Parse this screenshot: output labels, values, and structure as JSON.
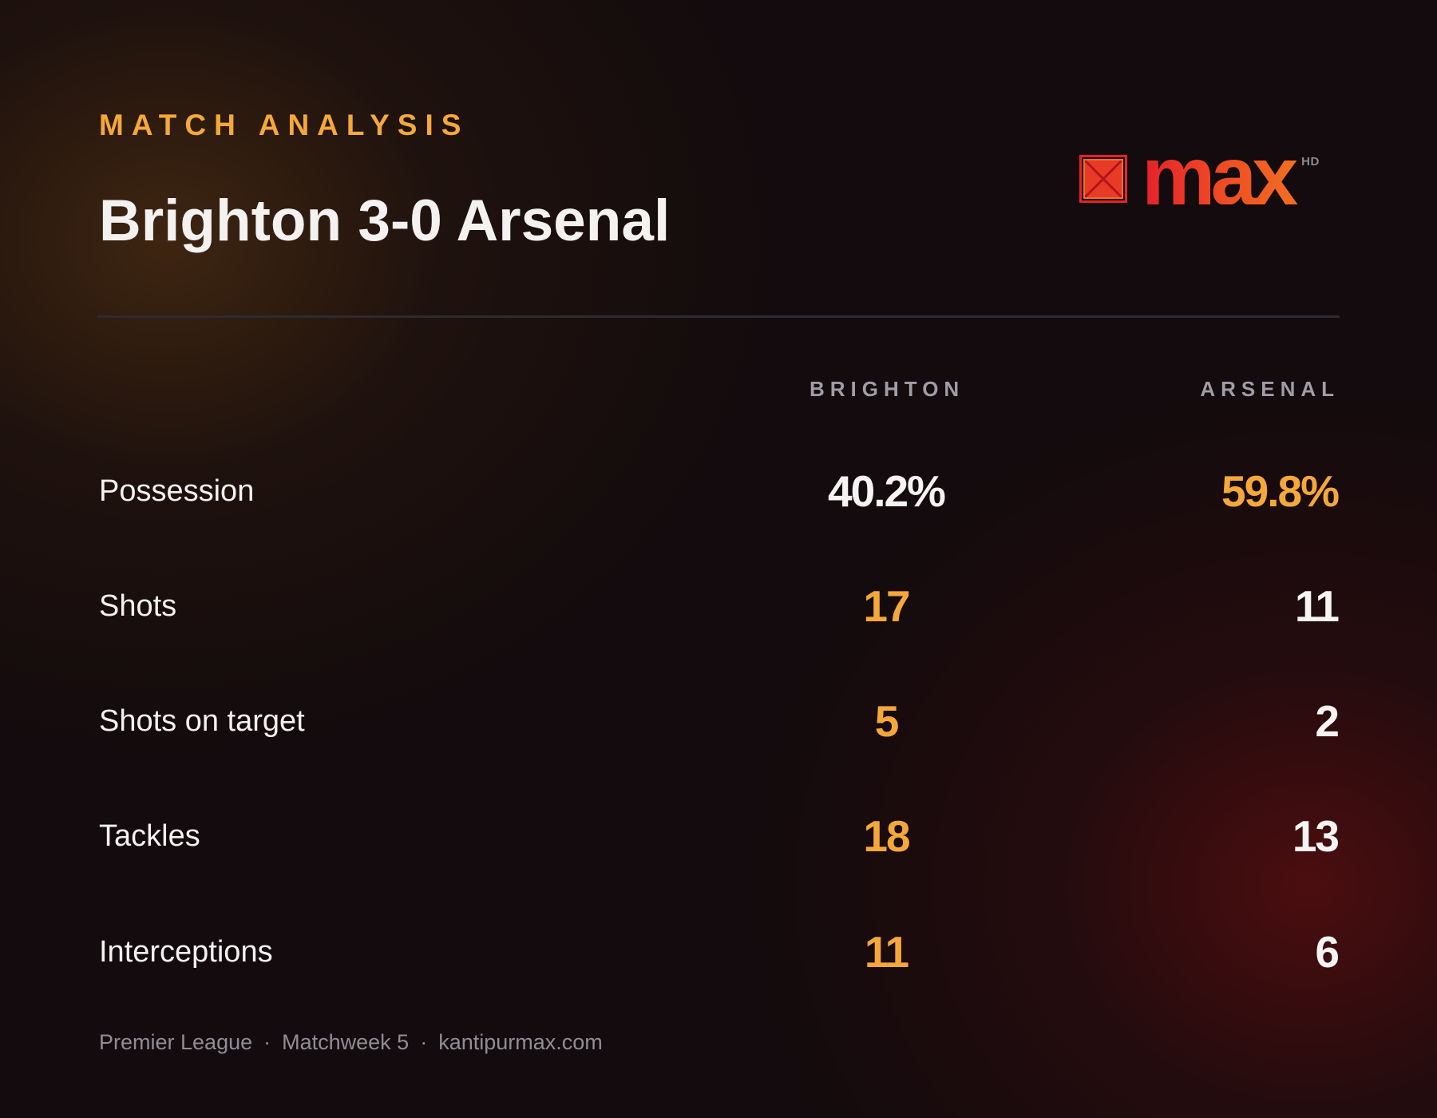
{
  "header": {
    "kicker": "MATCH ANALYSIS",
    "headline": "Brighton 3-0 Arsenal"
  },
  "logo": {
    "wordmark": "max",
    "superscript": "HD",
    "mark_icon": "kantipur-max-logo-icon",
    "colors": {
      "red": "#e5212b",
      "orange": "#f26f22"
    }
  },
  "columns": {
    "home": "BRIGHTON",
    "away": "ARSENAL"
  },
  "stats": [
    {
      "label": "Possession",
      "home": "40.2%",
      "away": "59.8%",
      "leader": "away"
    },
    {
      "label": "Shots",
      "home": "17",
      "away": "11",
      "leader": "home"
    },
    {
      "label": "Shots on target",
      "home": "5",
      "away": "2",
      "leader": "home"
    },
    {
      "label": "Tackles",
      "home": "18",
      "away": "13",
      "leader": "home"
    },
    {
      "label": "Interceptions",
      "home": "11",
      "away": "6",
      "leader": "home"
    }
  ],
  "footer": {
    "competition": "Premier League",
    "separator": "·",
    "matchweek": "Matchweek 5",
    "site": "kantipurmax.com"
  },
  "colors": {
    "accent": "#f5a83a",
    "text": "#f4f1f1",
    "muted": "#9f9da6",
    "background": "#130b0d",
    "divider": "#2c2b33"
  }
}
